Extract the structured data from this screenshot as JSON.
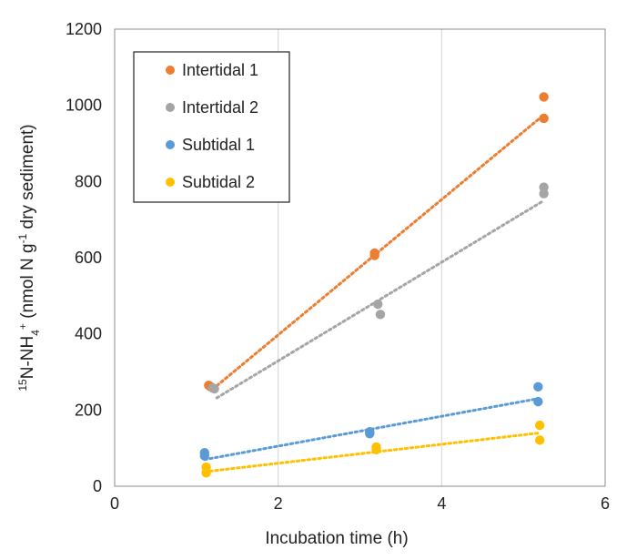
{
  "chart_data": {
    "type": "scatter",
    "title": "",
    "xlabel": "Incubation time (h)",
    "ylabel": {
      "sup1": "15",
      "part1": "N-NH",
      "sub1": "4",
      "sup2": "+",
      "part2": " (nmol N g",
      "sup3": "-1",
      "part3": " dry sediment)"
    },
    "xlim": [
      0,
      6
    ],
    "ylim": [
      0,
      1200
    ],
    "xticks": [
      "0",
      "2",
      "4",
      "6"
    ],
    "yticks": [
      "0",
      "200",
      "400",
      "600",
      "800",
      "1000",
      "1200"
    ],
    "grid": "vertical",
    "legend_position": "top-left",
    "series": [
      {
        "name": "Intertidal 1",
        "color": "#ED7D31",
        "points": [
          [
            1.15,
            265
          ],
          [
            1.17,
            262
          ],
          [
            3.18,
            612
          ],
          [
            3.18,
            606
          ],
          [
            5.25,
            1022
          ],
          [
            5.25,
            966
          ]
        ],
        "trend": [
          [
            1.2,
            255
          ],
          [
            5.25,
            975
          ]
        ]
      },
      {
        "name": "Intertidal 2",
        "color": "#A5A5A5",
        "points": [
          [
            1.2,
            258
          ],
          [
            1.22,
            256
          ],
          [
            3.22,
            478
          ],
          [
            3.25,
            451
          ],
          [
            5.25,
            785
          ],
          [
            5.25,
            768
          ]
        ],
        "trend": [
          [
            1.25,
            232
          ],
          [
            5.25,
            750
          ]
        ]
      },
      {
        "name": "Subtidal 1",
        "color": "#5B9BD5",
        "points": [
          [
            1.1,
            88
          ],
          [
            1.1,
            80
          ],
          [
            3.12,
            143
          ],
          [
            3.12,
            138
          ],
          [
            5.18,
            261
          ],
          [
            5.18,
            222
          ]
        ],
        "trend": [
          [
            1.1,
            70
          ],
          [
            5.18,
            230
          ]
        ]
      },
      {
        "name": "Subtidal 2",
        "color": "#FFC000",
        "points": [
          [
            1.12,
            50
          ],
          [
            1.12,
            35
          ],
          [
            3.2,
            103
          ],
          [
            3.2,
            96
          ],
          [
            5.2,
            160
          ],
          [
            5.2,
            121
          ]
        ],
        "trend": [
          [
            1.1,
            38
          ],
          [
            5.2,
            140
          ]
        ]
      }
    ]
  }
}
